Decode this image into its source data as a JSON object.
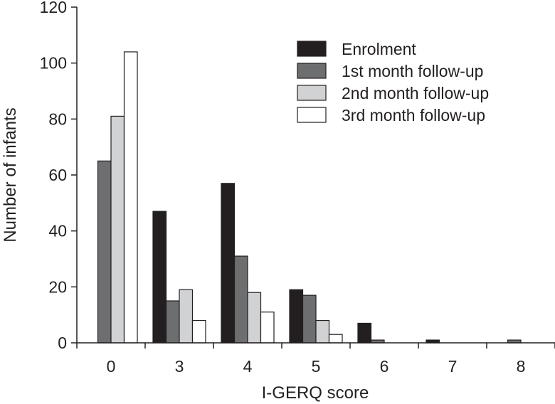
{
  "chart_data": {
    "type": "bar",
    "title": "",
    "xlabel": "I-GERQ score",
    "ylabel": "Number of infants",
    "categories": [
      "0",
      "3",
      "4",
      "5",
      "6",
      "7",
      "8"
    ],
    "ylim": [
      0,
      120
    ],
    "yticks": [
      0,
      20,
      40,
      60,
      80,
      100,
      120
    ],
    "grid": false,
    "legend_position": "top-right",
    "series": [
      {
        "name": "Enrolment",
        "color": "#231f20",
        "values": [
          0,
          47,
          57,
          19,
          7,
          1,
          0
        ]
      },
      {
        "name": "1st month follow-up",
        "color": "#6d6e70",
        "values": [
          65,
          15,
          31,
          17,
          1,
          0,
          1
        ]
      },
      {
        "name": "2nd month follow-up",
        "color": "#d1d2d4",
        "values": [
          81,
          19,
          18,
          8,
          0,
          0,
          0
        ]
      },
      {
        "name": "3rd month follow-up",
        "color": "#ffffff",
        "values": [
          104,
          8,
          11,
          3,
          0,
          0,
          0
        ]
      }
    ]
  }
}
